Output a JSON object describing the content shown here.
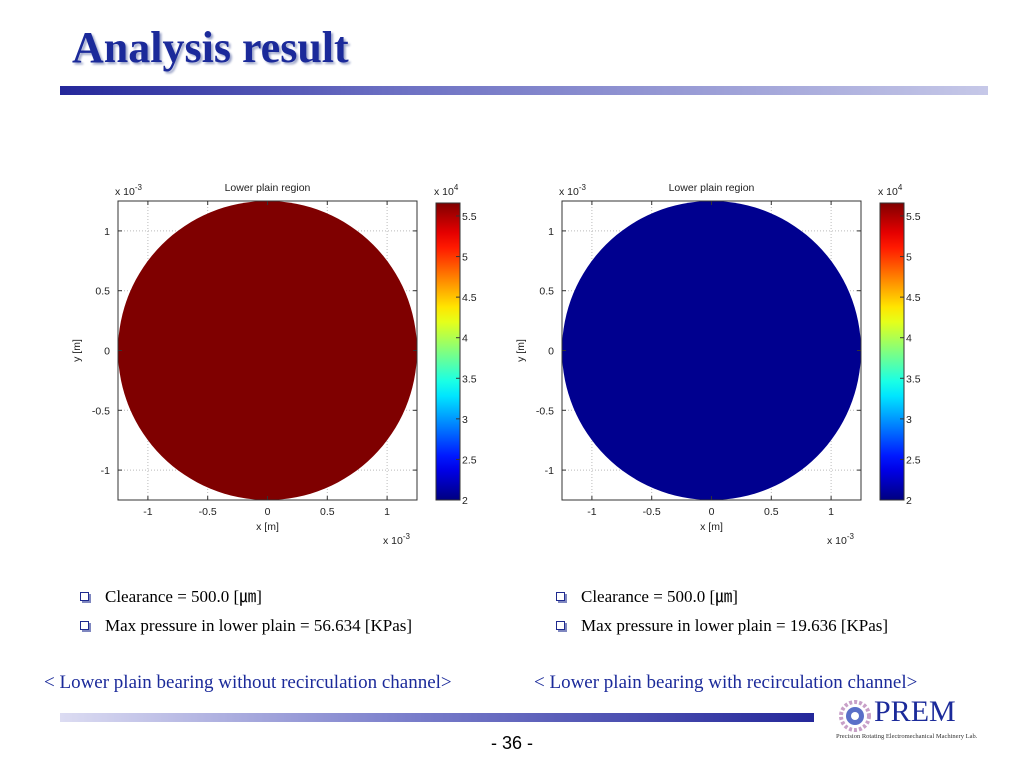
{
  "title": "Analysis result",
  "page_number": "- 36 -",
  "logo": {
    "name": "PREM",
    "subtitle": "Precision Rotating Electromechanical Machinery Lab."
  },
  "colors": {
    "title": "#1b2a9a",
    "caption": "#1b2a9a",
    "circle_left": "#7f0000",
    "circle_right": "#00008f"
  },
  "chart_data": [
    {
      "type": "heatmap",
      "title": "Lower plain region",
      "xlabel": "x [m]",
      "ylabel": "y [m]",
      "x_exponent": "x 10",
      "x_exponent_power": "-3",
      "y_exponent": "x 10",
      "y_exponent_power": "-3",
      "xlim": [
        -1.25,
        1.25
      ],
      "ylim": [
        -1.25,
        1.25
      ],
      "xticks": [
        -1,
        -0.5,
        0,
        0.5,
        1
      ],
      "xtick_labels": [
        "-1",
        "-0.5",
        "0",
        "0.5",
        "1"
      ],
      "yticks": [
        1,
        0.5,
        0,
        -0.5,
        -1
      ],
      "ytick_labels": [
        "1",
        "0.5",
        "0",
        "-0.5",
        "-1"
      ],
      "grid": true,
      "region_radius": 1.25,
      "region_value": 56634,
      "colorbar": {
        "exponent": "x 10",
        "exponent_power": "4",
        "range": [
          2,
          5.66
        ],
        "ticks": [
          5.5,
          5,
          4.5,
          4,
          3.5,
          3,
          2.5,
          2
        ],
        "tick_labels": [
          "5.5",
          "5",
          "4.5",
          "4",
          "3.5",
          "3",
          "2.5",
          "2"
        ],
        "colormap": "jet"
      }
    },
    {
      "type": "heatmap",
      "title": "Lower plain region",
      "xlabel": "x [m]",
      "ylabel": "y [m]",
      "x_exponent": "x 10",
      "x_exponent_power": "-3",
      "y_exponent": "x 10",
      "y_exponent_power": "-3",
      "xlim": [
        -1.25,
        1.25
      ],
      "ylim": [
        -1.25,
        1.25
      ],
      "xticks": [
        -1,
        -0.5,
        0,
        0.5,
        1
      ],
      "xtick_labels": [
        "-1",
        "-0.5",
        "0",
        "0.5",
        "1"
      ],
      "yticks": [
        1,
        0.5,
        0,
        -0.5,
        -1
      ],
      "ytick_labels": [
        "1",
        "0.5",
        "0",
        "-0.5",
        "-1"
      ],
      "grid": true,
      "region_radius": 1.25,
      "region_value": 19636,
      "colorbar": {
        "exponent": "x 10",
        "exponent_power": "4",
        "range": [
          2,
          5.66
        ],
        "ticks": [
          5.5,
          5,
          4.5,
          4,
          3.5,
          3,
          2.5,
          2
        ],
        "tick_labels": [
          "5.5",
          "5",
          "4.5",
          "4",
          "3.5",
          "3",
          "2.5",
          "2"
        ],
        "colormap": "jet"
      }
    }
  ],
  "left_bullets": [
    "Clearance = 500.0 [㎛]",
    "Max pressure in lower plain = 56.634 [KPas]"
  ],
  "right_bullets": [
    "Clearance = 500.0 [㎛]",
    "Max pressure in lower plain =  19.636 [KPas]"
  ],
  "left_caption": "< Lower plain bearing without recirculation channel>",
  "right_caption": "< Lower plain bearing with recirculation channel>"
}
